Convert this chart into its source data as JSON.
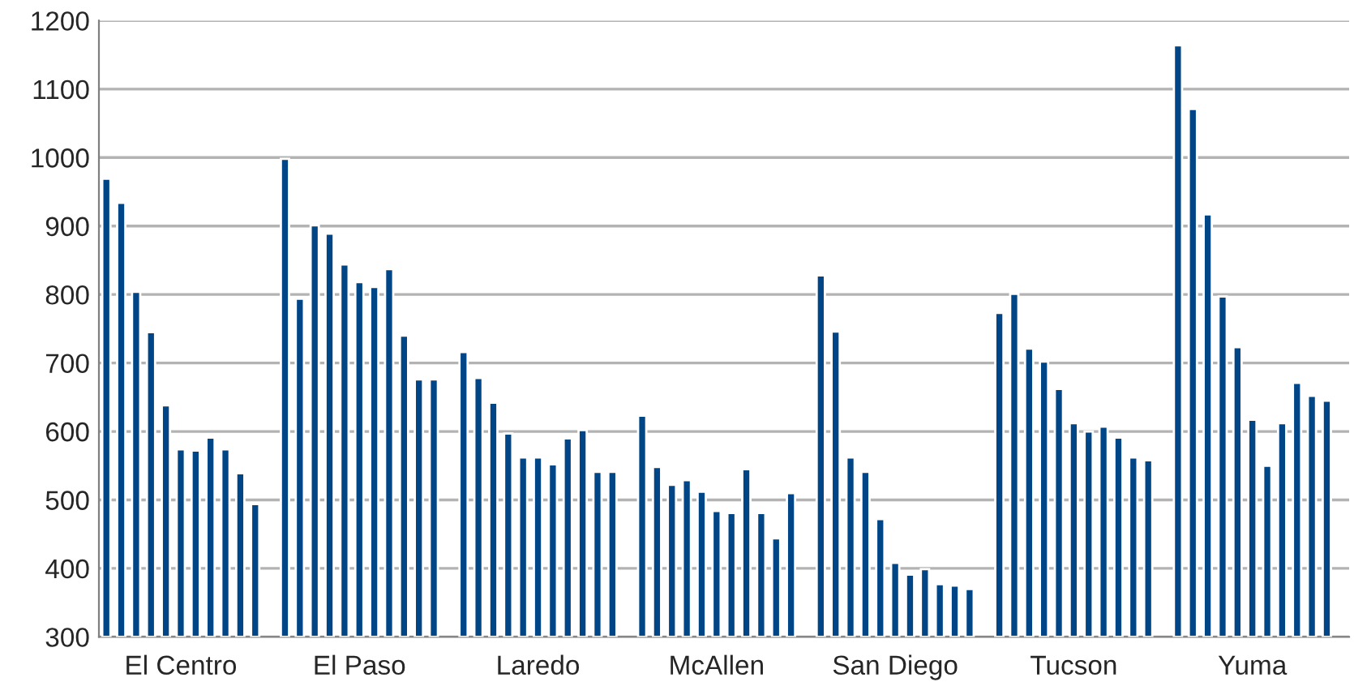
{
  "chart_data": {
    "type": "bar",
    "color": "#004586",
    "ylim": [
      300,
      1200
    ],
    "yticks": [
      300,
      400,
      500,
      600,
      700,
      800,
      900,
      1000,
      1100,
      1200
    ],
    "grid": "y",
    "categories": [
      null,
      null,
      null,
      null,
      null,
      "El Centro",
      null,
      null,
      null,
      null,
      null,
      null,
      null,
      null,
      null,
      null,
      null,
      "El Paso",
      null,
      null,
      null,
      null,
      null,
      null,
      null,
      null,
      null,
      null,
      null,
      "Laredo",
      null,
      null,
      null,
      null,
      null,
      null,
      null,
      null,
      null,
      null,
      null,
      "McAllen",
      null,
      null,
      null,
      null,
      null,
      null,
      null,
      null,
      null,
      null,
      null,
      "San Diego",
      null,
      null,
      null,
      null,
      null,
      null,
      null,
      null,
      null,
      null,
      null,
      "Tucson",
      null,
      null,
      null,
      null,
      null,
      null,
      null,
      null,
      null,
      null,
      null,
      "Yuma",
      null,
      null,
      null,
      null,
      null,
      null
    ],
    "values": [
      969,
      934,
      804,
      745,
      638,
      574,
      572,
      591,
      574,
      539,
      494,
      null,
      998,
      794,
      901,
      889,
      844,
      818,
      811,
      837,
      740,
      676,
      676,
      null,
      716,
      678,
      642,
      597,
      562,
      562,
      552,
      590,
      602,
      541,
      541,
      null,
      623,
      548,
      522,
      529,
      512,
      484,
      481,
      545,
      481,
      444,
      510,
      null,
      828,
      746,
      562,
      541,
      472,
      408,
      391,
      399,
      377,
      375,
      370,
      null,
      773,
      801,
      721,
      702,
      662,
      612,
      600,
      607,
      591,
      562,
      558,
      null,
      1164,
      1071,
      917,
      797,
      723,
      617,
      550,
      612,
      671,
      652,
      645,
      null
    ]
  }
}
